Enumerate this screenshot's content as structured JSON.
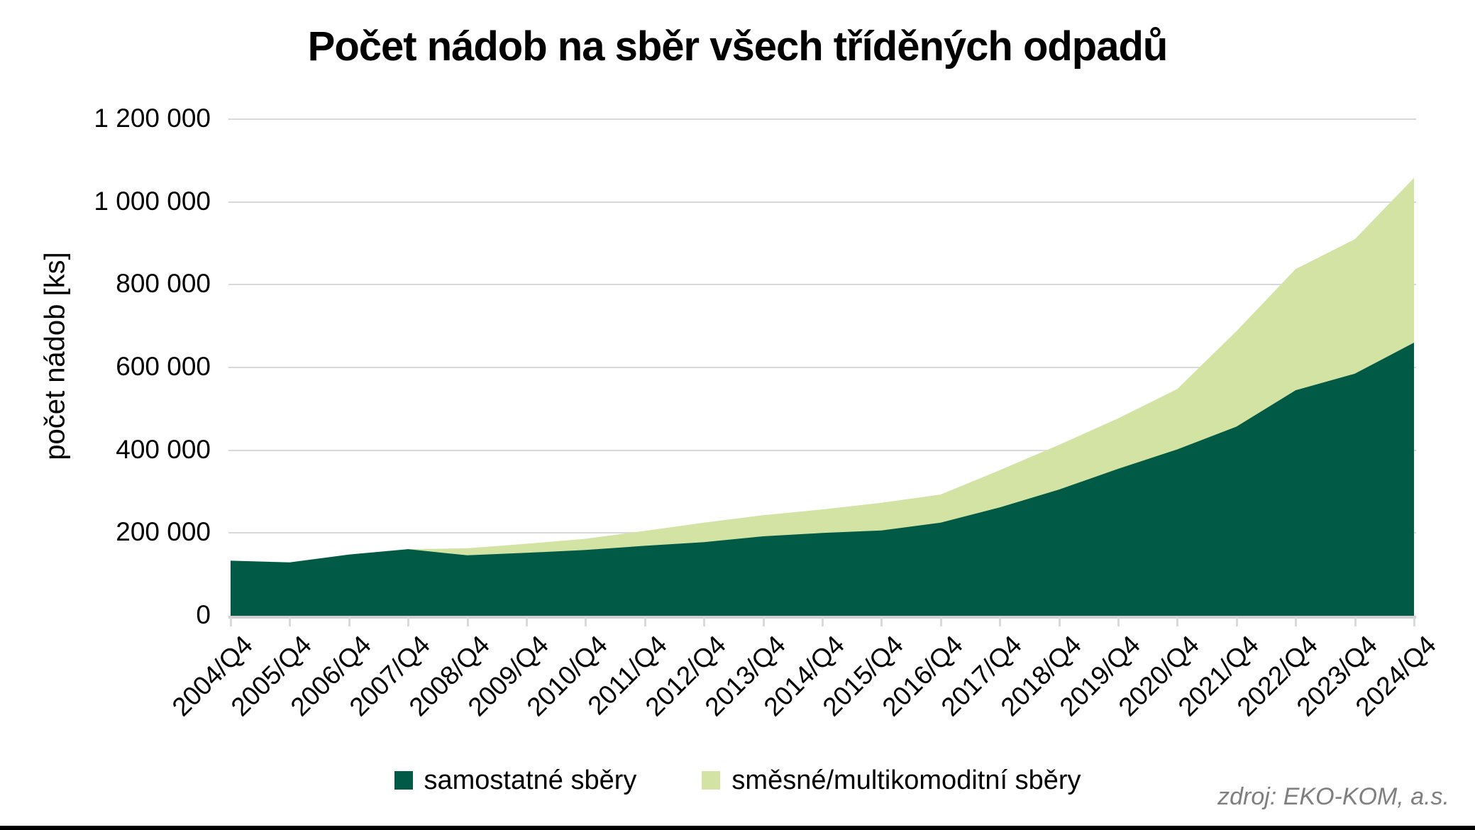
{
  "title": "Počet nádob na sběr všech tříděných odpadů",
  "source_note": "zdroj: EKO-KOM, a.s.",
  "legend": {
    "items": [
      {
        "label": "samostatné sběry",
        "color": "#005A46"
      },
      {
        "label": "směsné/multikomoditní sběry",
        "color": "#D3E3A3"
      }
    ]
  },
  "colors": {
    "dark_series": "#005A46",
    "light_series": "#D3E3A3",
    "gridline": "#D9D9D9",
    "axis_line": "#CFCFCF",
    "source_text": "#7F7F7F",
    "title_text": "#000000",
    "bottom_bar": "#000000"
  },
  "chart_data": {
    "type": "area",
    "stacked": true,
    "title": "Počet nádob na sběr všech tříděných odpadů",
    "xlabel": "",
    "ylabel": "počet nádob [ks]",
    "ylim": [
      0,
      1200000
    ],
    "grid": true,
    "legend_position": "bottom",
    "y_ticks": [
      0,
      200000,
      400000,
      600000,
      800000,
      1000000,
      1200000
    ],
    "y_tick_labels": [
      "0",
      "200 000",
      "400 000",
      "600 000",
      "800 000",
      "1 000 000",
      "1 200 000"
    ],
    "categories": [
      "2004/Q4",
      "2005/Q4",
      "2006/Q4",
      "2007/Q4",
      "2008/Q4",
      "2009/Q4",
      "2010/Q4",
      "2011/Q4",
      "2012/Q4",
      "2013/Q4",
      "2014/Q4",
      "2015/Q4",
      "2016/Q4",
      "2017/Q4",
      "2018/Q4",
      "2019/Q4",
      "2020/Q4",
      "2021/Q4",
      "2022/Q4",
      "2023/Q4",
      "2024/Q4"
    ],
    "series": [
      {
        "name": "samostatné sběry",
        "color": "#005A46",
        "values": [
          133000,
          129000,
          148000,
          161000,
          146000,
          152000,
          159000,
          169000,
          178000,
          192000,
          200000,
          206000,
          225000,
          262000,
          305000,
          355000,
          402000,
          457000,
          545000,
          585000,
          660000
        ]
      },
      {
        "name": "směsné/multikomoditní sběry",
        "color": "#D3E3A3",
        "values": [
          0,
          0,
          0,
          0,
          17000,
          22000,
          27000,
          36000,
          47000,
          51000,
          57000,
          67000,
          68000,
          90000,
          108000,
          122000,
          146000,
          231000,
          293000,
          325000,
          398000
        ]
      }
    ]
  }
}
